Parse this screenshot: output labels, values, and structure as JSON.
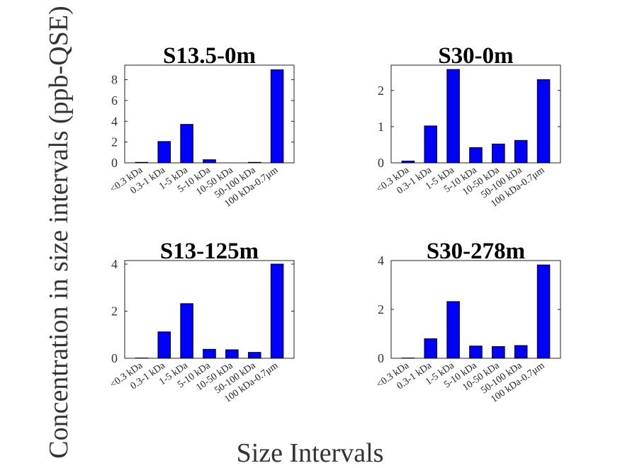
{
  "figure": {
    "ylabel": "Concentration in size intervals (ppb-QSE)",
    "xlabel": "Size Intervals",
    "bar_color": "#0000ff"
  },
  "chart_data": [
    {
      "type": "bar",
      "title": "S13.5-0m",
      "categories": [
        "<0.3 kDa",
        "0.3-1 kDa",
        "1-5 kDa",
        "5-10 kDa",
        "10-50 kDa",
        "50-100 kDa",
        "100 kDa-0.7μm"
      ],
      "values": [
        0.05,
        2.05,
        3.7,
        0.3,
        0.0,
        0.05,
        8.95
      ],
      "ylim": [
        0,
        9.4
      ],
      "yticks": [
        0,
        2,
        4,
        6,
        8
      ]
    },
    {
      "type": "bar",
      "title": "S30-0m",
      "categories": [
        "<0.3 kDa",
        "0.3-1 kDa",
        "1-5 kDa",
        "5-10 kDa",
        "10-50 kDa",
        "50-100 kDa",
        "100 kDa-0.7μm"
      ],
      "values": [
        0.05,
        1.02,
        2.58,
        0.42,
        0.52,
        0.62,
        2.3
      ],
      "ylim": [
        0,
        2.7
      ],
      "yticks": [
        0,
        1,
        2
      ]
    },
    {
      "type": "bar",
      "title": "S13-125m",
      "categories": [
        "<0.3 kDa",
        "0.3-1 kDa",
        "1-5 kDa",
        "5-10 kDa",
        "10-50 kDa",
        "50-100 kDa",
        "100 kDa-0.7μm"
      ],
      "values": [
        0.01,
        1.12,
        2.32,
        0.38,
        0.36,
        0.25,
        4.0
      ],
      "ylim": [
        0,
        4.15
      ],
      "yticks": [
        0,
        2,
        4
      ]
    },
    {
      "type": "bar",
      "title": "S30-278m",
      "categories": [
        "<0.3 kDa",
        "0.3-1 kDa",
        "1-5 kDa",
        "5-10 kDa",
        "10-50 kDa",
        "50-100 kDa",
        "100 kDa-0.7μm"
      ],
      "values": [
        0.01,
        0.8,
        2.32,
        0.5,
        0.48,
        0.52,
        3.82
      ],
      "ylim": [
        0,
        4.0
      ],
      "yticks": [
        0,
        2,
        4
      ]
    }
  ]
}
